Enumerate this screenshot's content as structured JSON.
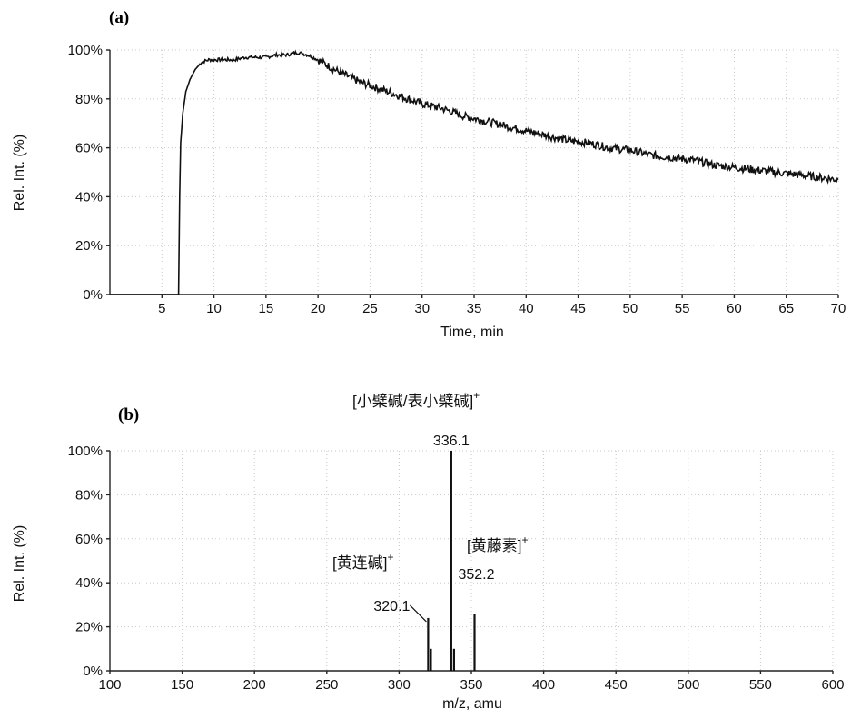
{
  "chart_data": [
    {
      "panel_label": "(a)",
      "type": "line",
      "xlabel": "Time, min",
      "ylabel": "Rel. Int. (%)",
      "xlim": [
        0,
        70
      ],
      "ylim": [
        0,
        100
      ],
      "x_ticks": [
        5,
        10,
        15,
        20,
        25,
        30,
        35,
        40,
        45,
        50,
        55,
        60,
        65,
        70
      ],
      "y_ticks": [
        0,
        20,
        40,
        60,
        80,
        100
      ],
      "y_tick_labels": [
        "0%",
        "20%",
        "40%",
        "60%",
        "80%",
        "100%"
      ],
      "grid": true,
      "series": [
        {
          "x": [
            0,
            6.6,
            6.7,
            6.8,
            7.0,
            7.3,
            7.7,
            8.2,
            8.8,
            9.5,
            10,
            11,
            12,
            13,
            14,
            15,
            16,
            17,
            18,
            19,
            20,
            22,
            24,
            26,
            28,
            30,
            32,
            34,
            36,
            38,
            40,
            42,
            44,
            46,
            48,
            50,
            52,
            54,
            56,
            58,
            60,
            62,
            64,
            66,
            68,
            70
          ],
          "y": [
            0,
            0,
            40,
            62,
            74,
            83,
            88,
            92,
            95,
            96,
            96,
            96,
            96,
            97,
            97,
            97,
            98,
            98,
            99,
            98,
            96,
            91,
            87,
            84,
            81,
            78,
            76,
            73,
            71,
            69,
            67,
            65,
            63,
            62,
            60,
            59,
            57,
            56,
            55,
            53,
            52,
            51,
            50,
            49,
            48,
            47
          ]
        }
      ]
    },
    {
      "panel_label": "(b)",
      "type": "bar",
      "xlabel": "m/z, amu",
      "ylabel": "Rel. Int. (%)",
      "xlim": [
        100,
        600
      ],
      "ylim": [
        0,
        100
      ],
      "x_ticks": [
        100,
        150,
        200,
        250,
        300,
        350,
        400,
        450,
        500,
        550,
        600
      ],
      "y_ticks": [
        0,
        20,
        40,
        60,
        80,
        100
      ],
      "y_tick_labels": [
        "0%",
        "20%",
        "40%",
        "60%",
        "80%",
        "100%"
      ],
      "grid": true,
      "peaks": [
        {
          "mz": 320.1,
          "intensity": 24,
          "label": "320.1"
        },
        {
          "mz": 322.0,
          "intensity": 10,
          "label": ""
        },
        {
          "mz": 336.1,
          "intensity": 100,
          "label": "336.1"
        },
        {
          "mz": 338.0,
          "intensity": 10,
          "label": ""
        },
        {
          "mz": 352.2,
          "intensity": 26,
          "label": "352.2"
        }
      ],
      "annotations": [
        {
          "text": "[小檗碱/表小檗碱]",
          "sup": "+"
        },
        {
          "text": "[黄连碱]",
          "sup": "+"
        },
        {
          "text": "[黄藤素]",
          "sup": "+"
        }
      ]
    }
  ]
}
